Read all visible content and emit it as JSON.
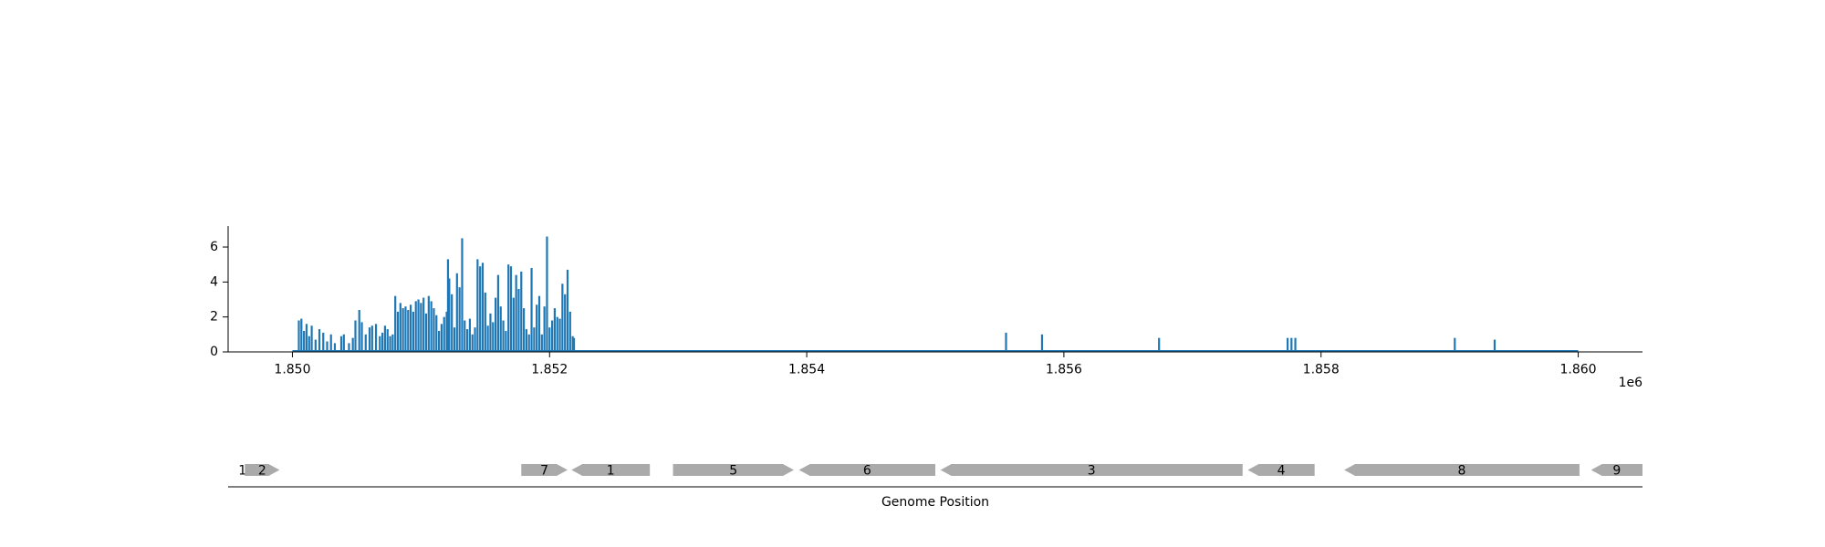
{
  "chart_data": [
    {
      "type": "bar",
      "title": "",
      "xlabel": "",
      "ylabel": "",
      "x_offset_label": "1e6",
      "xlim": [
        1849500,
        1860500
      ],
      "ylim": [
        0,
        7.2
      ],
      "x_ticks": [
        {
          "value": 1850000,
          "label": "1.850"
        },
        {
          "value": 1852000,
          "label": "1.852"
        },
        {
          "value": 1854000,
          "label": "1.854"
        },
        {
          "value": 1856000,
          "label": "1.856"
        },
        {
          "value": 1858000,
          "label": "1.858"
        },
        {
          "value": 1860000,
          "label": "1.860"
        }
      ],
      "y_ticks": [
        {
          "value": 0,
          "label": "0"
        },
        {
          "value": 2,
          "label": "2"
        },
        {
          "value": 4,
          "label": "4"
        },
        {
          "value": 6,
          "label": "6"
        }
      ],
      "color": "#1f77b4",
      "baseline": {
        "x_start": 1850000,
        "x_end": 1860000,
        "value": 0
      },
      "points": [
        {
          "x": 1850050,
          "y": 1.8
        },
        {
          "x": 1850070,
          "y": 1.9
        },
        {
          "x": 1850090,
          "y": 1.2
        },
        {
          "x": 1850110,
          "y": 1.6
        },
        {
          "x": 1850130,
          "y": 0.9
        },
        {
          "x": 1850150,
          "y": 1.5
        },
        {
          "x": 1850180,
          "y": 0.7
        },
        {
          "x": 1850210,
          "y": 1.3
        },
        {
          "x": 1850240,
          "y": 1.1
        },
        {
          "x": 1850270,
          "y": 0.6
        },
        {
          "x": 1850300,
          "y": 1.0
        },
        {
          "x": 1850330,
          "y": 0.5
        },
        {
          "x": 1850380,
          "y": 0.9
        },
        {
          "x": 1850400,
          "y": 1.0
        },
        {
          "x": 1850440,
          "y": 0.5
        },
        {
          "x": 1850470,
          "y": 0.8
        },
        {
          "x": 1850490,
          "y": 1.8
        },
        {
          "x": 1850520,
          "y": 2.4
        },
        {
          "x": 1850540,
          "y": 1.7
        },
        {
          "x": 1850570,
          "y": 1.0
        },
        {
          "x": 1850600,
          "y": 1.4
        },
        {
          "x": 1850620,
          "y": 1.5
        },
        {
          "x": 1850650,
          "y": 1.6
        },
        {
          "x": 1850680,
          "y": 0.9
        },
        {
          "x": 1850700,
          "y": 1.1
        },
        {
          "x": 1850720,
          "y": 1.5
        },
        {
          "x": 1850740,
          "y": 1.3
        },
        {
          "x": 1850760,
          "y": 0.9
        },
        {
          "x": 1850780,
          "y": 1.0
        },
        {
          "x": 1850800,
          "y": 3.2
        },
        {
          "x": 1850820,
          "y": 2.3
        },
        {
          "x": 1850840,
          "y": 2.8
        },
        {
          "x": 1850860,
          "y": 2.5
        },
        {
          "x": 1850880,
          "y": 2.6
        },
        {
          "x": 1850900,
          "y": 2.4
        },
        {
          "x": 1850920,
          "y": 2.7
        },
        {
          "x": 1850940,
          "y": 2.3
        },
        {
          "x": 1850960,
          "y": 2.9
        },
        {
          "x": 1850980,
          "y": 3.0
        },
        {
          "x": 1851000,
          "y": 2.8
        },
        {
          "x": 1851020,
          "y": 3.1
        },
        {
          "x": 1851040,
          "y": 2.2
        },
        {
          "x": 1851060,
          "y": 3.2
        },
        {
          "x": 1851080,
          "y": 2.9
        },
        {
          "x": 1851100,
          "y": 2.5
        },
        {
          "x": 1851120,
          "y": 2.1
        },
        {
          "x": 1851140,
          "y": 1.2
        },
        {
          "x": 1851160,
          "y": 1.6
        },
        {
          "x": 1851180,
          "y": 2.0
        },
        {
          "x": 1851200,
          "y": 2.3
        },
        {
          "x": 1851210,
          "y": 5.3
        },
        {
          "x": 1851220,
          "y": 4.2
        },
        {
          "x": 1851240,
          "y": 3.3
        },
        {
          "x": 1851260,
          "y": 1.4
        },
        {
          "x": 1851280,
          "y": 4.5
        },
        {
          "x": 1851300,
          "y": 3.7
        },
        {
          "x": 1851320,
          "y": 6.5
        },
        {
          "x": 1851340,
          "y": 1.8
        },
        {
          "x": 1851360,
          "y": 1.3
        },
        {
          "x": 1851380,
          "y": 1.9
        },
        {
          "x": 1851400,
          "y": 1.0
        },
        {
          "x": 1851420,
          "y": 1.4
        },
        {
          "x": 1851440,
          "y": 5.3
        },
        {
          "x": 1851460,
          "y": 4.9
        },
        {
          "x": 1851480,
          "y": 5.1
        },
        {
          "x": 1851500,
          "y": 3.4
        },
        {
          "x": 1851520,
          "y": 1.5
        },
        {
          "x": 1851540,
          "y": 2.2
        },
        {
          "x": 1851560,
          "y": 1.7
        },
        {
          "x": 1851580,
          "y": 3.1
        },
        {
          "x": 1851600,
          "y": 4.4
        },
        {
          "x": 1851620,
          "y": 2.6
        },
        {
          "x": 1851640,
          "y": 1.8
        },
        {
          "x": 1851660,
          "y": 1.2
        },
        {
          "x": 1851680,
          "y": 5.0
        },
        {
          "x": 1851700,
          "y": 4.9
        },
        {
          "x": 1851720,
          "y": 3.1
        },
        {
          "x": 1851740,
          "y": 4.4
        },
        {
          "x": 1851760,
          "y": 3.6
        },
        {
          "x": 1851780,
          "y": 4.6
        },
        {
          "x": 1851800,
          "y": 2.5
        },
        {
          "x": 1851820,
          "y": 1.3
        },
        {
          "x": 1851840,
          "y": 1.0
        },
        {
          "x": 1851860,
          "y": 4.8
        },
        {
          "x": 1851880,
          "y": 1.4
        },
        {
          "x": 1851900,
          "y": 2.7
        },
        {
          "x": 1851920,
          "y": 3.2
        },
        {
          "x": 1851940,
          "y": 1.0
        },
        {
          "x": 1851960,
          "y": 2.6
        },
        {
          "x": 1851980,
          "y": 6.6
        },
        {
          "x": 1852000,
          "y": 1.4
        },
        {
          "x": 1852020,
          "y": 1.8
        },
        {
          "x": 1852040,
          "y": 2.5
        },
        {
          "x": 1852060,
          "y": 2.0
        },
        {
          "x": 1852080,
          "y": 1.9
        },
        {
          "x": 1852100,
          "y": 3.9
        },
        {
          "x": 1852120,
          "y": 3.3
        },
        {
          "x": 1852140,
          "y": 4.7
        },
        {
          "x": 1852160,
          "y": 2.3
        },
        {
          "x": 1852180,
          "y": 0.9
        },
        {
          "x": 1852190,
          "y": 0.8
        },
        {
          "x": 1855550,
          "y": 1.1
        },
        {
          "x": 1855830,
          "y": 1.0
        },
        {
          "x": 1856740,
          "y": 0.8
        },
        {
          "x": 1857740,
          "y": 0.8
        },
        {
          "x": 1857770,
          "y": 0.8
        },
        {
          "x": 1857800,
          "y": 0.8
        },
        {
          "x": 1859040,
          "y": 0.8
        },
        {
          "x": 1859350,
          "y": 0.7
        }
      ]
    },
    {
      "type": "gene-map",
      "xlabel": "Genome Position",
      "xlim": [
        1849500,
        1860500
      ],
      "genes": [
        {
          "label": "10",
          "start": 1849500,
          "end": 1849600,
          "strand": "+"
        },
        {
          "label": "2",
          "start": 1849630,
          "end": 1849900,
          "strand": "+"
        },
        {
          "label": "7",
          "start": 1851780,
          "end": 1852140,
          "strand": "+"
        },
        {
          "label": "1",
          "start": 1852170,
          "end": 1852780,
          "strand": "-"
        },
        {
          "label": "5",
          "start": 1852960,
          "end": 1853900,
          "strand": "+"
        },
        {
          "label": "6",
          "start": 1853940,
          "end": 1855000,
          "strand": "-"
        },
        {
          "label": "3",
          "start": 1855040,
          "end": 1857390,
          "strand": "-"
        },
        {
          "label": "4",
          "start": 1857430,
          "end": 1857950,
          "strand": "-"
        },
        {
          "label": "8",
          "start": 1858180,
          "end": 1860010,
          "strand": "-"
        },
        {
          "label": "9",
          "start": 1860100,
          "end": 1860500,
          "strand": "-"
        }
      ]
    }
  ]
}
